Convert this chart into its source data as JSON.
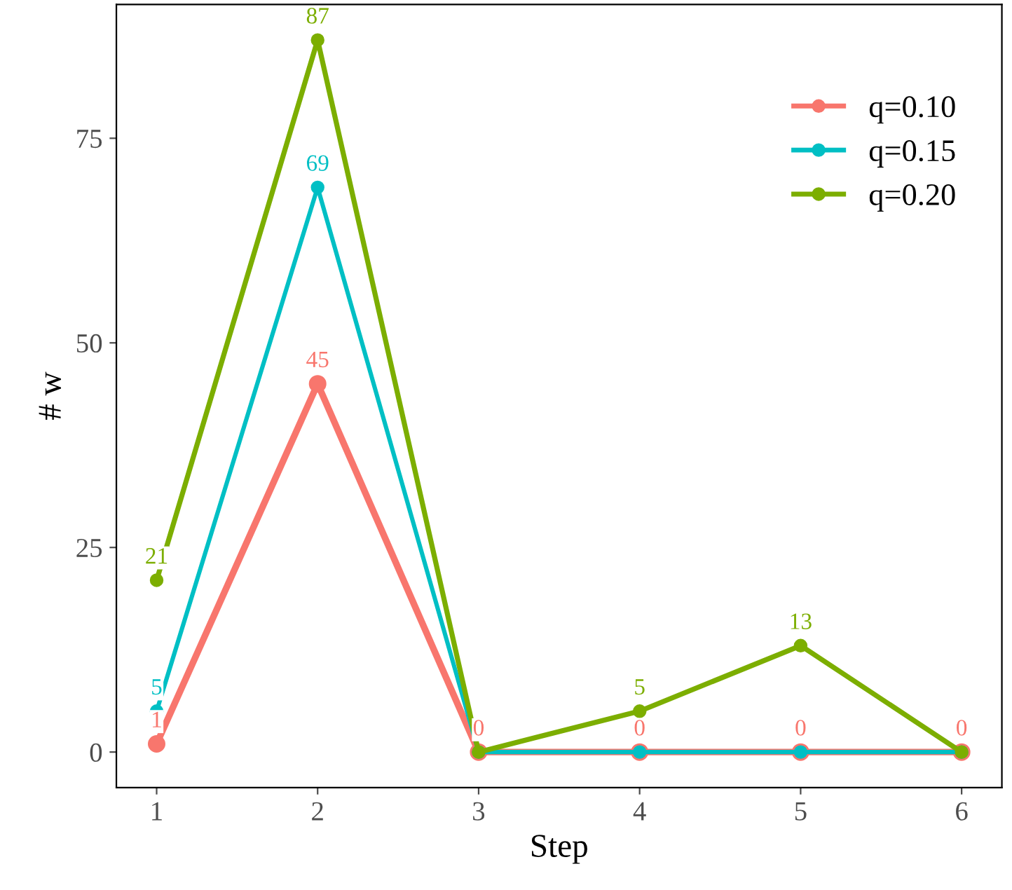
{
  "chart_data": {
    "type": "line",
    "xlabel": "Step",
    "ylabel": "# w",
    "x": [
      1,
      2,
      3,
      4,
      5,
      6
    ],
    "series": [
      {
        "name": "q=0.10",
        "color": "#f8766d",
        "values": [
          1,
          45,
          0,
          0,
          0,
          0
        ],
        "value_labels": [
          "1",
          "45",
          "0",
          "0",
          "0",
          "0"
        ]
      },
      {
        "name": "q=0.15",
        "color": "#00bfc4",
        "values": [
          5,
          69,
          0,
          0,
          0,
          0
        ],
        "value_labels": [
          "5",
          "69",
          null,
          null,
          null,
          null
        ]
      },
      {
        "name": "q=0.20",
        "color": "#7cae00",
        "values": [
          21,
          87,
          0,
          5,
          13,
          0
        ],
        "value_labels": [
          "21",
          "87",
          null,
          "5",
          "13",
          null
        ]
      }
    ],
    "xlim": [
      0.75,
      6.25
    ],
    "ylim": [
      -4.35,
      91.35
    ],
    "xticks": [
      1,
      2,
      3,
      4,
      5,
      6
    ],
    "yticks": [
      0,
      25,
      50,
      75
    ],
    "grid": false,
    "legend": "top right",
    "marker": "circle",
    "line_style": "solid"
  }
}
